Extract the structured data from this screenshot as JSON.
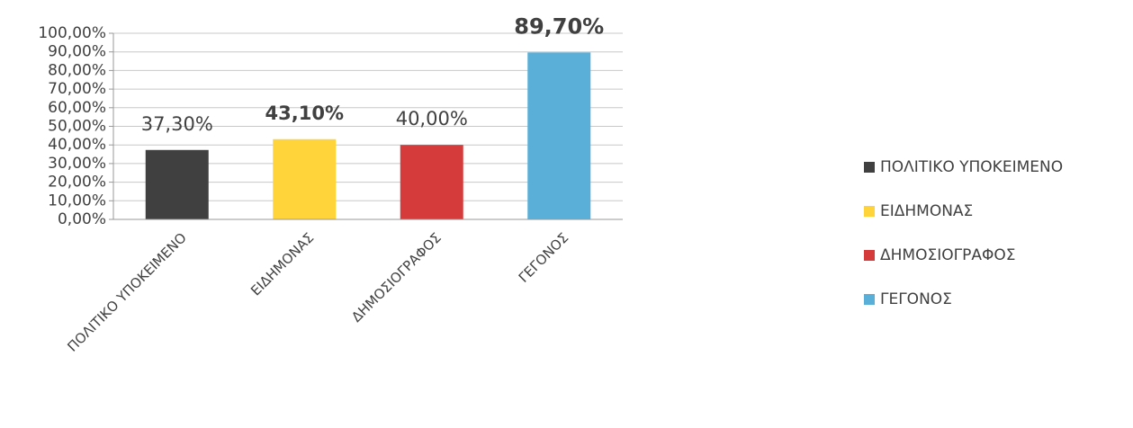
{
  "chart_data": {
    "type": "bar",
    "categories": [
      "ΠΟΛΙΤΙΚΟ ΥΠΟΚΕΙΜΕΝΟ",
      "ΕΙΔΗΜΟΝΑΣ",
      "ΔΗΜΟΣΙΟΓΡΑΦΟΣ",
      "ΓΕΓΟΝΟΣ"
    ],
    "values": [
      37.3,
      43.1,
      40.0,
      89.7
    ],
    "value_labels": [
      "37,30%",
      "43,10%",
      "40,00%",
      "89,70%"
    ],
    "value_label_bold": [
      false,
      true,
      false,
      true
    ],
    "colors": [
      "#404040",
      "#ffd43b",
      "#d63b3b",
      "#5aafd8"
    ],
    "ylim": [
      0,
      100
    ],
    "yticks": [
      {
        "value": 0,
        "label": "0,00%"
      },
      {
        "value": 10,
        "label": "10,00%"
      },
      {
        "value": 20,
        "label": "20,00%"
      },
      {
        "value": 30,
        "label": "30,00%"
      },
      {
        "value": 40,
        "label": "40,00%"
      },
      {
        "value": 50,
        "label": "50,00%"
      },
      {
        "value": 60,
        "label": "60,00%"
      },
      {
        "value": 70,
        "label": "70,00%"
      },
      {
        "value": 80,
        "label": "80,00%"
      },
      {
        "value": 90,
        "label": "90,00%"
      },
      {
        "value": 100,
        "label": "100,00%"
      }
    ],
    "grid": true,
    "legend": "right"
  }
}
